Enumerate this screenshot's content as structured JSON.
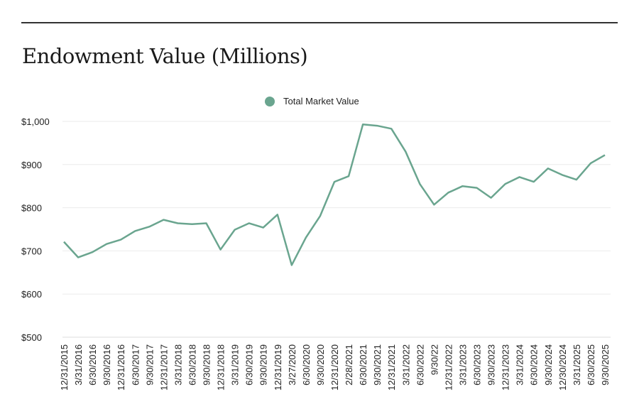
{
  "chart_data": {
    "type": "line",
    "title": "Endowment Value (Millions)",
    "categories": [
      "12/31/2015",
      "3/31/2016",
      "6/30/2016",
      "9/30/2016",
      "12/31/2016",
      "6/30/2017",
      "9/30/2017",
      "12/31/2017",
      "3/31/2018",
      "6/30/2018",
      "9/30/2018",
      "12/31/2018",
      "3/31/2019",
      "6/30/2019",
      "9/30/2019",
      "12/31/2019",
      "3/27/2020",
      "6/30/2020",
      "9/30/2020",
      "12/31/2020",
      "2/28/2021",
      "6/30/2021",
      "9/30/2021",
      "12/31/2021",
      "3/31/2022",
      "6/30/2022",
      "9/30/22",
      "12/31/2022",
      "3/31/2023",
      "6/30/2023",
      "9/30/2023",
      "12/31/2023",
      "3/31/2024",
      "6/30/2024",
      "9/30/2024",
      "12/30/2024",
      "3/31/2025",
      "6/30/2025",
      "9/30/2025"
    ],
    "series": [
      {
        "name": "Total Market Value",
        "color": "#6aa58f",
        "values": [
          721,
          685,
          697,
          716,
          726,
          746,
          756,
          772,
          764,
          762,
          764,
          703,
          749,
          764,
          754,
          784,
          667,
          731,
          781,
          860,
          873,
          993,
          990,
          983,
          930,
          855,
          807,
          835,
          850,
          846,
          823,
          855,
          871,
          860,
          891,
          876,
          865,
          903,
          922
        ]
      }
    ],
    "ylim": [
      500,
      1000
    ],
    "yticks": [
      500,
      600,
      700,
      800,
      900,
      1000
    ],
    "ytick_labels": [
      "$500",
      "$600",
      "$700",
      "$800",
      "$900",
      "$1,000"
    ],
    "grid": true,
    "legend": "top-center"
  }
}
